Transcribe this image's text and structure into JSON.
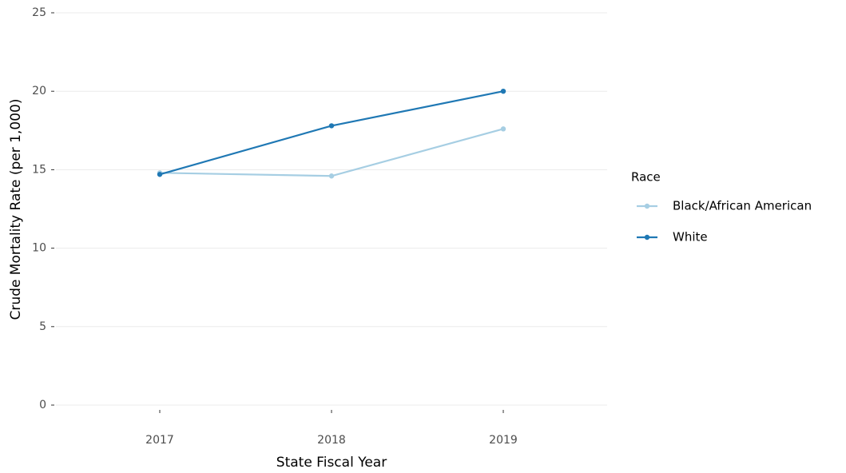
{
  "chart_data": {
    "type": "line",
    "x_label": "State Fiscal Year",
    "y_label": "Crude Mortality Rate (per 1,000)",
    "categories": [
      "2017",
      "2018",
      "2019"
    ],
    "series": [
      {
        "name": "Black/African American",
        "color": "#a6cee3",
        "values": [
          14.8,
          14.6,
          17.6
        ]
      },
      {
        "name": "White",
        "color": "#1f78b4",
        "values": [
          14.7,
          17.8,
          20.0
        ]
      }
    ],
    "ylim": [
      0,
      25
    ],
    "yticks": [
      0,
      5,
      10,
      15,
      20,
      25
    ],
    "grid": true,
    "legend_title": "Race",
    "legend": "right"
  }
}
